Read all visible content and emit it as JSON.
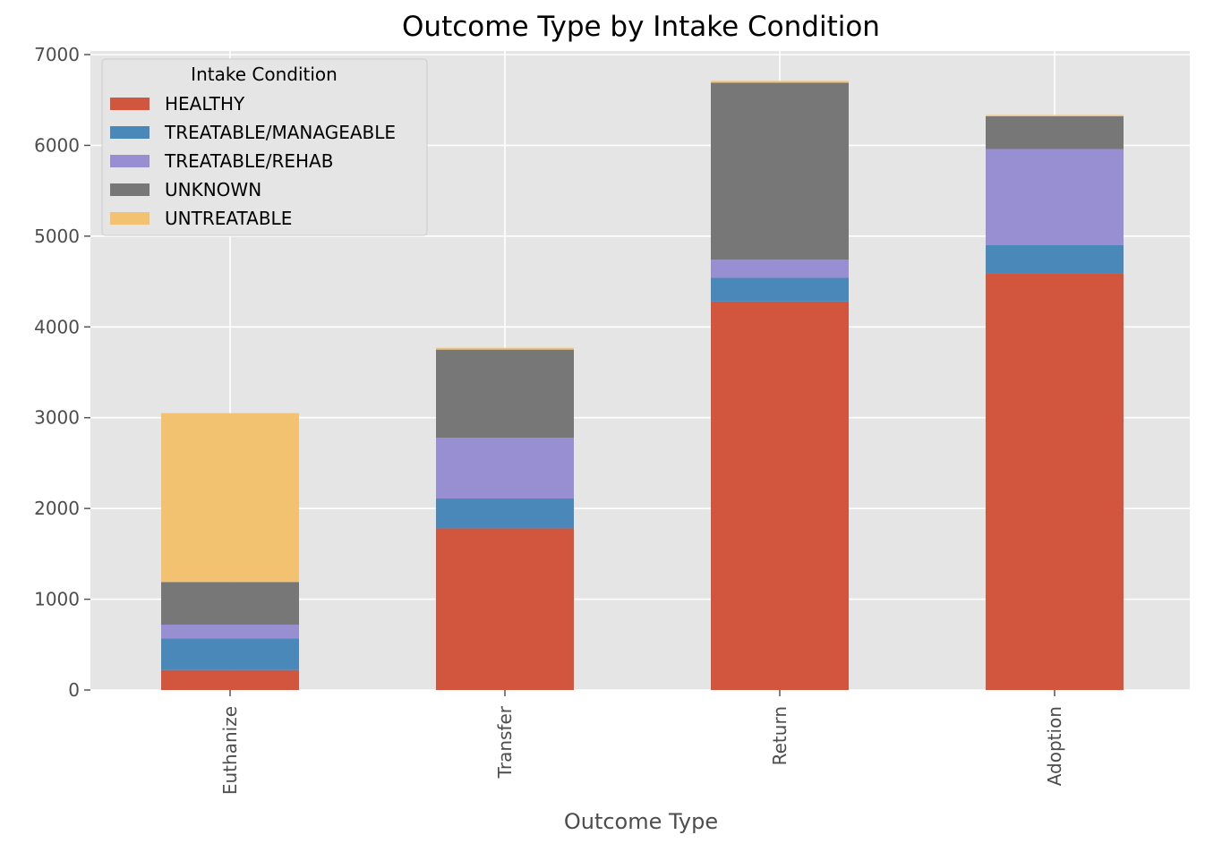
{
  "chart_data": {
    "type": "bar",
    "stacked": true,
    "title": "Outcome Type by Intake Condition",
    "xlabel": "Outcome Type",
    "ylabel": "",
    "ylim": [
      0,
      7000
    ],
    "yticks": [
      "0",
      "1000",
      "2000",
      "3000",
      "4000",
      "5000",
      "6000",
      "7000"
    ],
    "grid": true,
    "categories": [
      "Euthanize",
      "Transfer",
      "Return",
      "Adoption"
    ],
    "legend": {
      "title": "Intake Condition",
      "position": "upper-left"
    },
    "series": [
      {
        "name": "HEALTHY",
        "color": "#d1563d",
        "values": [
          220,
          1780,
          4280,
          4590
        ]
      },
      {
        "name": "TREATABLE/MANAGEABLE",
        "color": "#4a88b9",
        "values": [
          350,
          330,
          260,
          310
        ]
      },
      {
        "name": "TREATABLE/REHAB",
        "color": "#978fd2",
        "values": [
          150,
          670,
          200,
          1060
        ]
      },
      {
        "name": "UNKNOWN",
        "color": "#777777",
        "values": [
          470,
          970,
          1950,
          360
        ]
      },
      {
        "name": "UNTREATABLE",
        "color": "#f2c270",
        "values": [
          1860,
          20,
          20,
          15
        ]
      }
    ]
  }
}
